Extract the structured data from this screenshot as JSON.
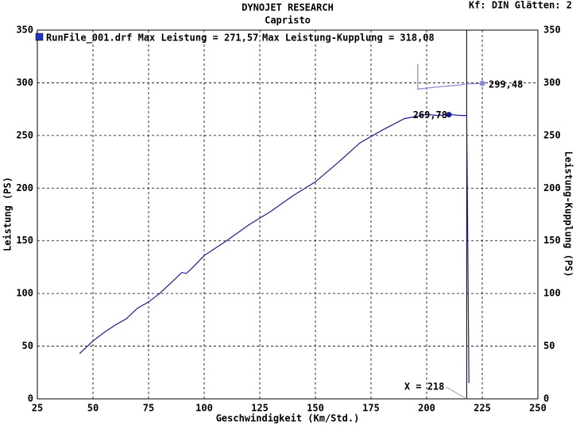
{
  "chart_data": {
    "type": "line",
    "title": "DYNOJET RESEARCH",
    "subtitle": "Capristo",
    "corner_text": "Kf: DIN  Glätten: 2",
    "xlabel": "Geschwindigkeit (Km/Std.)",
    "ylabel": "Leistung (PS)",
    "y2label": "Leistung-Kupplung (PS)",
    "legend_text": [
      "RunFile_001.drf Max Leistung = 271,57",
      "Max Leistung-Kupplung = 318,08"
    ],
    "legend_color": "#2233cc",
    "xlim": [
      25,
      250
    ],
    "xticks": [
      25,
      50,
      75,
      100,
      125,
      150,
      175,
      200,
      225,
      250
    ],
    "ylim": [
      0,
      350
    ],
    "yticks": [
      0,
      50,
      100,
      150,
      200,
      250,
      300,
      350
    ],
    "y2lim": [
      0,
      350
    ],
    "y2ticks": [
      0,
      50,
      100,
      150,
      200,
      250,
      300,
      350
    ],
    "grid": true,
    "series": [
      {
        "color": "#1a1a9c",
        "x": [
          44,
          50,
          55,
          60,
          65,
          70,
          75,
          80,
          85,
          90,
          92,
          95,
          100,
          110,
          120,
          130,
          140,
          150,
          160,
          170,
          180,
          190,
          200,
          205,
          210,
          215,
          218,
          219
        ],
        "values": [
          43,
          55,
          63,
          70,
          76,
          86,
          92,
          100,
          110,
          120,
          119,
          125,
          136,
          150,
          165,
          178,
          193,
          206,
          224,
          243,
          255,
          266,
          270,
          269,
          270,
          269,
          269,
          15
        ]
      },
      {
        "color": "#8888dd",
        "axis": "y2",
        "x": [
          196,
          196,
          200,
          205,
          210,
          215,
          218,
          220,
          225
        ],
        "values": [
          318,
          294,
          295,
          296,
          297,
          298,
          299,
          299,
          299.48
        ]
      }
    ],
    "markers": [
      {
        "x": 210,
        "y": {
          "value": 269.78,
          "label": "269,78"
        },
        "color": "#1a1a9c"
      },
      {
        "x": 225,
        "y": {
          "value": 299.48,
          "label": "299,48"
        },
        "color": "#8888dd",
        "axis": "y2"
      }
    ],
    "cursor": {
      "x": 218,
      "label": "X = 218"
    }
  }
}
